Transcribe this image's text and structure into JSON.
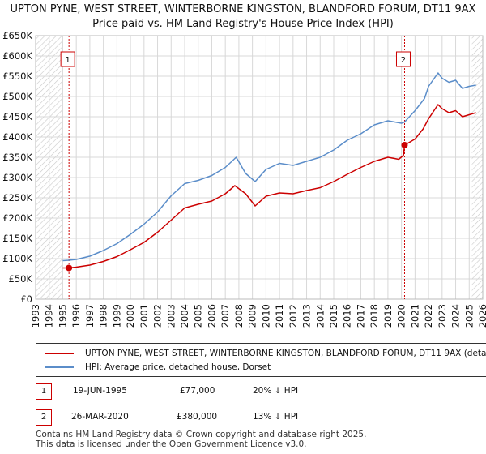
{
  "title_line1": "UPTON PYNE, WEST STREET, WINTERBORNE KINGSTON, BLANDFORD FORUM, DT11 9AX",
  "title_line2": "Price paid vs. HM Land Registry's House Price Index (HPI)",
  "chart_data": {
    "type": "line",
    "title": "UPTON PYNE, WEST STREET, WINTERBORNE KINGSTON, BLANDFORD FORUM, DT11 9AX",
    "subtitle": "Price paid vs. HM Land Registry's House Price Index (HPI)",
    "xlabel": "",
    "ylabel": "",
    "xlim": [
      1993,
      2026
    ],
    "ylim": [
      0,
      650000
    ],
    "x_ticks": [
      "1993",
      "1994",
      "1995",
      "1996",
      "1997",
      "1998",
      "1999",
      "2000",
      "2001",
      "2002",
      "2003",
      "2004",
      "2005",
      "2006",
      "2007",
      "2008",
      "2009",
      "2010",
      "2011",
      "2012",
      "2013",
      "2014",
      "2015",
      "2016",
      "2017",
      "2018",
      "2019",
      "2020",
      "2021",
      "2022",
      "2023",
      "2024",
      "2025",
      "2026"
    ],
    "y_ticks": [
      {
        "value": 0,
        "label": "£0"
      },
      {
        "value": 50000,
        "label": "£50K"
      },
      {
        "value": 100000,
        "label": "£100K"
      },
      {
        "value": 150000,
        "label": "£150K"
      },
      {
        "value": 200000,
        "label": "£200K"
      },
      {
        "value": 250000,
        "label": "£250K"
      },
      {
        "value": 300000,
        "label": "£300K"
      },
      {
        "value": 350000,
        "label": "£350K"
      },
      {
        "value": 400000,
        "label": "£400K"
      },
      {
        "value": 450000,
        "label": "£450K"
      },
      {
        "value": 500000,
        "label": "£500K"
      },
      {
        "value": 550000,
        "label": "£550K"
      },
      {
        "value": 600000,
        "label": "£600K"
      },
      {
        "value": 650000,
        "label": "£650K"
      }
    ],
    "grid": true,
    "hatched_before": 1995.0,
    "hatched_after": 2025.2,
    "series": [
      {
        "name": "UPTON PYNE, WEST STREET, WINTERBORNE KINGSTON, BLANDFORD FORUM, DT11 9AX (detached house)",
        "color": "#cc0000",
        "x": [
          1995.0,
          1995.46,
          1996.0,
          1997.0,
          1998.0,
          1999.0,
          2000.0,
          2001.0,
          2002.0,
          2003.0,
          2004.0,
          2005.0,
          2006.0,
          2007.0,
          2007.7,
          2008.5,
          2009.2,
          2010.0,
          2011.0,
          2012.0,
          2013.0,
          2014.0,
          2015.0,
          2016.0,
          2017.0,
          2018.0,
          2019.0,
          2019.8,
          2020.15,
          2020.23,
          2021.0,
          2021.6,
          2022.0,
          2022.7,
          2023.0,
          2023.5,
          2024.0,
          2024.5,
          2025.0,
          2025.5
        ],
        "values": [
          77000,
          77000,
          79000,
          84000,
          93000,
          105000,
          122000,
          140000,
          165000,
          195000,
          225000,
          234000,
          242000,
          260000,
          280000,
          260000,
          230000,
          254000,
          262000,
          260000,
          268000,
          275000,
          290000,
          308000,
          325000,
          340000,
          350000,
          345000,
          355000,
          380000,
          395000,
          420000,
          445000,
          480000,
          470000,
          460000,
          465000,
          450000,
          455000,
          460000
        ]
      },
      {
        "name": "HPI: Average price, detached house, Dorset",
        "color": "#5b8dc9",
        "x": [
          1995.0,
          1995.46,
          1996.0,
          1997.0,
          1998.0,
          1999.0,
          2000.0,
          2001.0,
          2002.0,
          2003.0,
          2004.0,
          2005.0,
          2006.0,
          2007.0,
          2007.8,
          2008.5,
          2009.2,
          2010.0,
          2011.0,
          2012.0,
          2013.0,
          2014.0,
          2015.0,
          2016.0,
          2017.0,
          2018.0,
          2019.0,
          2020.0,
          2020.23,
          2021.0,
          2021.7,
          2022.0,
          2022.7,
          2023.0,
          2023.5,
          2024.0,
          2024.5,
          2025.0,
          2025.5
        ],
        "values": [
          95000,
          96000,
          98000,
          106000,
          120000,
          137000,
          160000,
          185000,
          215000,
          255000,
          285000,
          293000,
          305000,
          325000,
          350000,
          310000,
          290000,
          320000,
          335000,
          330000,
          340000,
          350000,
          368000,
          392000,
          408000,
          430000,
          440000,
          434000,
          437000,
          465000,
          495000,
          525000,
          558000,
          545000,
          535000,
          540000,
          520000,
          525000,
          528000
        ]
      }
    ],
    "annotations": [
      {
        "label": "1",
        "x": 1995.46
      },
      {
        "label": "2",
        "x": 2020.23
      }
    ],
    "sale_points": [
      {
        "x": 1995.46,
        "y": 77000
      },
      {
        "x": 2020.23,
        "y": 380000
      }
    ]
  },
  "legend": {
    "property_label": "UPTON PYNE, WEST STREET, WINTERBORNE KINGSTON, BLANDFORD FORUM, DT11 9AX (detac",
    "property_color": "#cc0000",
    "hpi_label": "HPI: Average price, detached house, Dorset",
    "hpi_color": "#5b8dc9"
  },
  "sales": [
    {
      "num": "1",
      "date": "19-JUN-1995",
      "price": "£77,000",
      "hpi": "20% ↓ HPI"
    },
    {
      "num": "2",
      "date": "26-MAR-2020",
      "price": "£380,000",
      "hpi": "13% ↓ HPI"
    }
  ],
  "footer": {
    "line1": "Contains HM Land Registry data © Crown copyright and database right 2025.",
    "line2": "This data is licensed under the Open Government Licence v3.0."
  }
}
